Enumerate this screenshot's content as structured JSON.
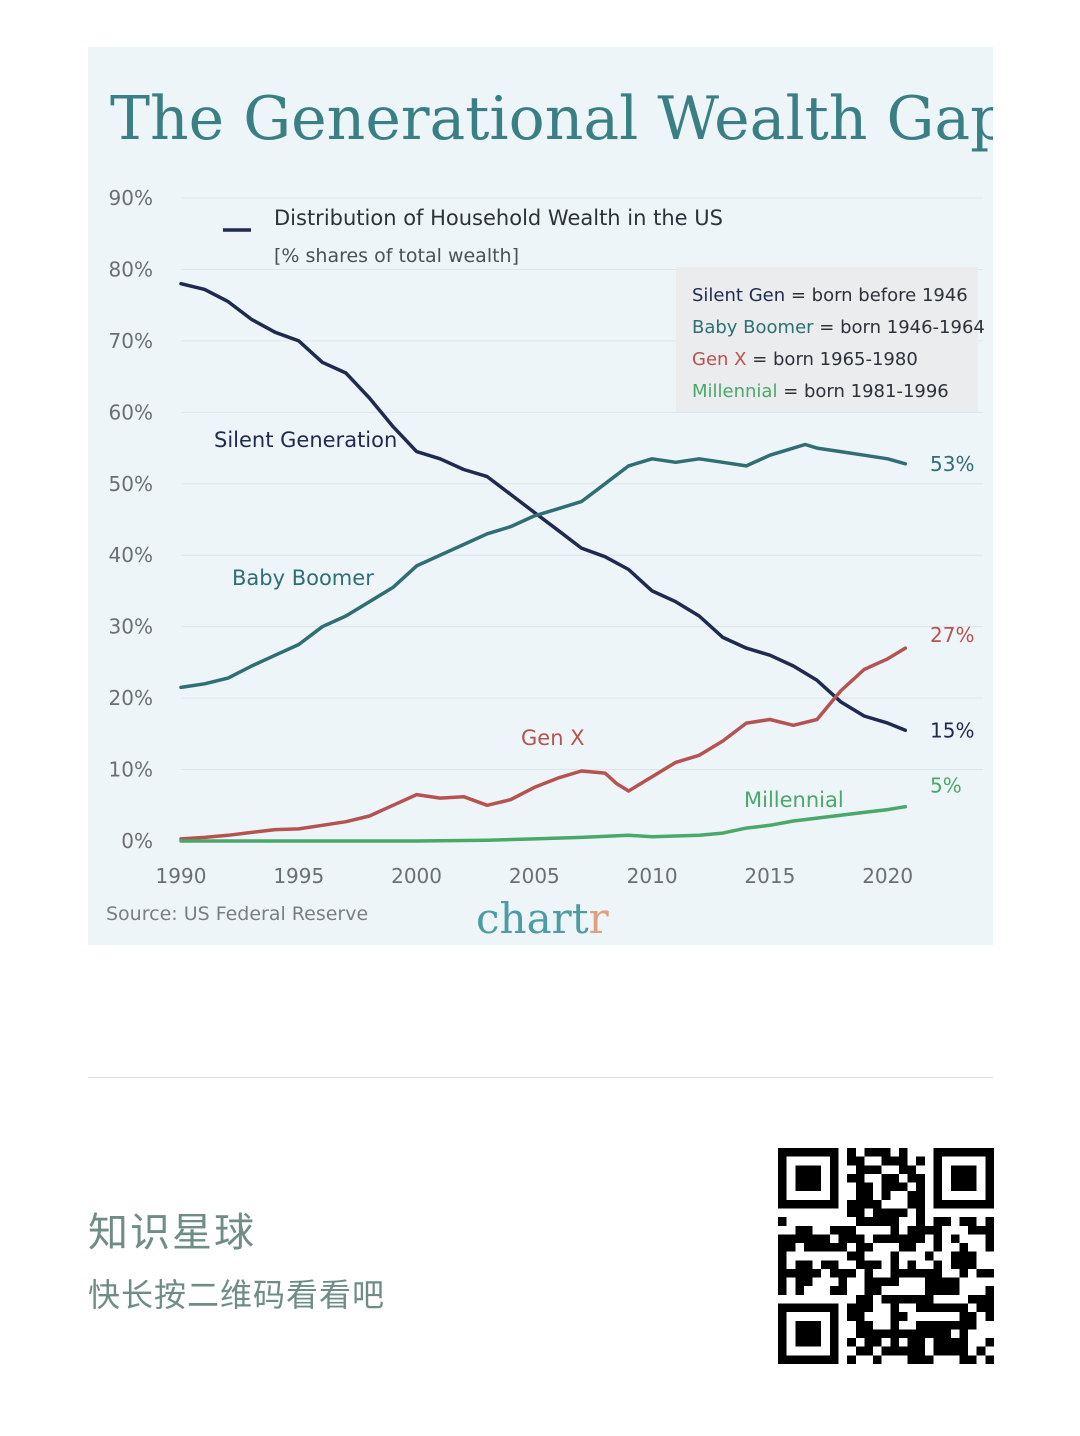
{
  "chart_data": {
    "type": "line",
    "title": "The Generational Wealth Gap",
    "legend_heading": "Distribution of Household Wealth in the US",
    "legend_subheading": "[% shares of total wealth]",
    "xlim": [
      1990,
      2021.5
    ],
    "ylim": [
      0,
      90
    ],
    "x_ticks": [
      "1990",
      "1995",
      "2000",
      "2005",
      "2010",
      "2015",
      "2020"
    ],
    "y_ticks": [
      "0%",
      "10%",
      "20%",
      "30%",
      "40%",
      "50%",
      "60%",
      "70%",
      "80%",
      "90%"
    ],
    "grid": true,
    "key": [
      {
        "name": "Silent Gen",
        "desc": "= born before 1946",
        "color": "#1e2a4f"
      },
      {
        "name": "Baby Boomer",
        "desc": "= born 1946-1964",
        "color": "#2f6e73"
      },
      {
        "name": "Gen X",
        "desc": "= born 1965-1980",
        "color": "#b55350"
      },
      {
        "name": "Millennial",
        "desc": "= born 1981-1996",
        "color": "#4aa86a"
      }
    ],
    "series": [
      {
        "name": "Silent Generation",
        "color": "#1e2a4f",
        "end_label": "15%",
        "points": [
          [
            1990,
            78
          ],
          [
            1991,
            77.2
          ],
          [
            1992,
            75.5
          ],
          [
            1993,
            73
          ],
          [
            1994,
            71.2
          ],
          [
            1995,
            70
          ],
          [
            1996,
            67
          ],
          [
            1997,
            65.5
          ],
          [
            1998,
            62
          ],
          [
            1999,
            58
          ],
          [
            2000,
            54.5
          ],
          [
            2001,
            53.5
          ],
          [
            2002,
            52
          ],
          [
            2003,
            51
          ],
          [
            2004,
            48.5
          ],
          [
            2005,
            46
          ],
          [
            2006,
            43.5
          ],
          [
            2007,
            41
          ],
          [
            2008,
            39.8
          ],
          [
            2009,
            38
          ],
          [
            2010,
            35
          ],
          [
            2011,
            33.5
          ],
          [
            2012,
            31.5
          ],
          [
            2013,
            28.5
          ],
          [
            2014,
            27
          ],
          [
            2015,
            26
          ],
          [
            2016,
            24.5
          ],
          [
            2017,
            22.5
          ],
          [
            2018,
            19.5
          ],
          [
            2019,
            17.5
          ],
          [
            2020,
            16.5
          ],
          [
            2020.75,
            15.5
          ]
        ]
      },
      {
        "name": "Baby Boomer",
        "color": "#2f6e73",
        "end_label": "53%",
        "points": [
          [
            1990,
            21.5
          ],
          [
            1991,
            22
          ],
          [
            1992,
            22.8
          ],
          [
            1993,
            24.5
          ],
          [
            1994,
            26
          ],
          [
            1995,
            27.5
          ],
          [
            1996,
            30
          ],
          [
            1997,
            31.5
          ],
          [
            1998,
            33.5
          ],
          [
            1999,
            35.5
          ],
          [
            2000,
            38.5
          ],
          [
            2001,
            40
          ],
          [
            2002,
            41.5
          ],
          [
            2003,
            43
          ],
          [
            2004,
            44
          ],
          [
            2005,
            45.5
          ],
          [
            2006,
            46.5
          ],
          [
            2007,
            47.5
          ],
          [
            2008,
            50
          ],
          [
            2009,
            52.5
          ],
          [
            2010,
            53.5
          ],
          [
            2011,
            53
          ],
          [
            2012,
            53.5
          ],
          [
            2013,
            53
          ],
          [
            2014,
            52.5
          ],
          [
            2015,
            54
          ],
          [
            2016,
            55
          ],
          [
            2016.5,
            55.5
          ],
          [
            2017,
            55
          ],
          [
            2018,
            54.5
          ],
          [
            2019,
            54
          ],
          [
            2020,
            53.5
          ],
          [
            2020.75,
            52.8
          ]
        ]
      },
      {
        "name": "Gen X",
        "color": "#b55350",
        "end_label": "27%",
        "points": [
          [
            1990,
            0.3
          ],
          [
            1991,
            0.5
          ],
          [
            1992,
            0.8
          ],
          [
            1993,
            1.2
          ],
          [
            1994,
            1.6
          ],
          [
            1995,
            1.7
          ],
          [
            1996,
            2.2
          ],
          [
            1997,
            2.7
          ],
          [
            1998,
            3.5
          ],
          [
            1999,
            5
          ],
          [
            2000,
            6.5
          ],
          [
            2001,
            6
          ],
          [
            2002,
            6.2
          ],
          [
            2003,
            5
          ],
          [
            2004,
            5.8
          ],
          [
            2005,
            7.5
          ],
          [
            2006,
            8.8
          ],
          [
            2007,
            9.8
          ],
          [
            2008,
            9.5
          ],
          [
            2008.5,
            8
          ],
          [
            2009,
            7
          ],
          [
            2010,
            9
          ],
          [
            2011,
            11
          ],
          [
            2012,
            12
          ],
          [
            2013,
            14
          ],
          [
            2014,
            16.5
          ],
          [
            2015,
            17
          ],
          [
            2016,
            16.2
          ],
          [
            2017,
            17
          ],
          [
            2018,
            21
          ],
          [
            2019,
            24
          ],
          [
            2020,
            25.5
          ],
          [
            2020.75,
            27
          ]
        ]
      },
      {
        "name": "Millennial",
        "color": "#4aa86a",
        "end_label": "5%",
        "points": [
          [
            1990,
            0
          ],
          [
            1995,
            0
          ],
          [
            2000,
            0
          ],
          [
            2003,
            0.1
          ],
          [
            2005,
            0.3
          ],
          [
            2007,
            0.5
          ],
          [
            2009,
            0.8
          ],
          [
            2010,
            0.6
          ],
          [
            2012,
            0.8
          ],
          [
            2013,
            1.1
          ],
          [
            2014,
            1.8
          ],
          [
            2015,
            2.2
          ],
          [
            2016,
            2.8
          ],
          [
            2017,
            3.2
          ],
          [
            2018,
            3.6
          ],
          [
            2019,
            4
          ],
          [
            2020,
            4.4
          ],
          [
            2020.75,
            4.8
          ]
        ]
      }
    ],
    "source": "Source: US Federal Reserve"
  },
  "brand": {
    "letters": [
      {
        "text": "c",
        "color": "#4d9ca3"
      },
      {
        "text": "h",
        "color": "#4d9ca3"
      },
      {
        "text": "a",
        "color": "#4d9ca3"
      },
      {
        "text": "r",
        "color": "#4d9ca3"
      },
      {
        "text": "t",
        "color": "#4d9ca3"
      },
      {
        "text": "r",
        "color": "#e0a080"
      }
    ]
  },
  "promo": {
    "title": "知识星球",
    "subtitle": "快长按二维码看看吧"
  }
}
